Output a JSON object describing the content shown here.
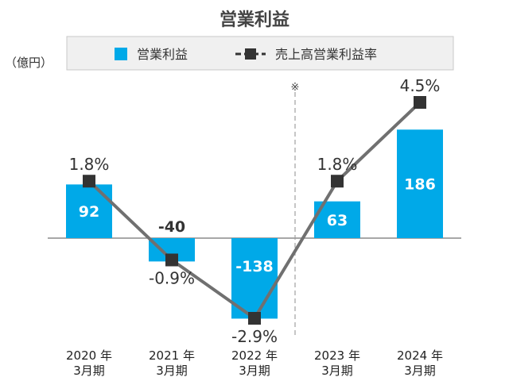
{
  "chart_data": {
    "type": "bar",
    "title": "営業利益",
    "unit_label": "（億円）",
    "note_marker": "※",
    "categories": [
      [
        "2020 年",
        "3月期"
      ],
      [
        "2021 年",
        "3月期"
      ],
      [
        "2022 年",
        "3月期"
      ],
      [
        "2023 年",
        "3月期"
      ],
      [
        "2024 年",
        "3月期"
      ]
    ],
    "series": [
      {
        "name": "営業利益",
        "type": "bar",
        "values": [
          92,
          -40,
          -138,
          63,
          186
        ],
        "labels": [
          "92",
          "-40",
          "-138",
          "63",
          "186"
        ],
        "color": "#00a9e8"
      },
      {
        "name": "売上高営業利益率",
        "type": "line",
        "values": [
          1.8,
          -0.9,
          -2.9,
          1.8,
          4.5
        ],
        "labels": [
          "1.8%",
          "-0.9%",
          "-2.9%",
          "1.8%",
          "4.5%"
        ],
        "color": "#707070",
        "marker_color": "#333333"
      }
    ],
    "bar_ylim": [
      -160,
      240
    ],
    "line_ylim": [
      -3.5,
      6.0
    ],
    "legend_position": "top",
    "grid": false
  }
}
